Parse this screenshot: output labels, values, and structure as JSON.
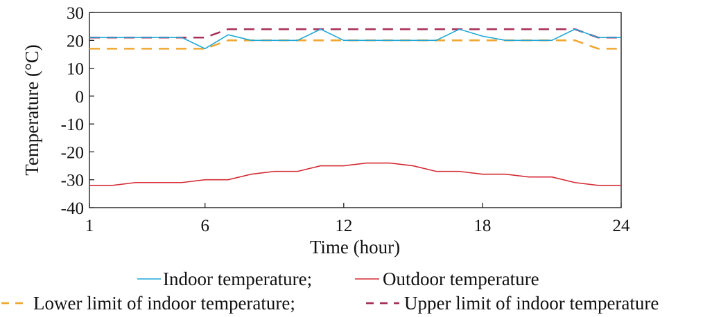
{
  "chart_data": {
    "type": "line",
    "xlabel": "Time (hour)",
    "ylabel": "Temperature (°C)",
    "xlim": [
      1,
      24
    ],
    "ylim": [
      -40,
      30
    ],
    "x_ticks": [
      1,
      6,
      12,
      18,
      24
    ],
    "y_ticks": [
      30,
      20,
      10,
      0,
      -10,
      -20,
      -30,
      -40
    ],
    "x": [
      1,
      2,
      3,
      4,
      5,
      6,
      7,
      8,
      9,
      10,
      11,
      12,
      13,
      14,
      15,
      16,
      17,
      18,
      19,
      20,
      21,
      22,
      23,
      24
    ],
    "grid": false,
    "legend_position": "bottom",
    "series": [
      {
        "name": "Indoor temperature;",
        "color": "#1ea7d7",
        "dash": "solid",
        "values": [
          21,
          21,
          21,
          21,
          21,
          17,
          22,
          20,
          20,
          20,
          24,
          20,
          20,
          20,
          20,
          20,
          24,
          21.5,
          20,
          20,
          20,
          24,
          21,
          21
        ]
      },
      {
        "name": "Outdoor temperature",
        "color": "#d42a34",
        "dash": "solid",
        "values": [
          -32,
          -32,
          -31,
          -31,
          -31,
          -30,
          -30,
          -28,
          -27,
          -27,
          -25,
          -25,
          -24,
          -24,
          -25,
          -27,
          -27,
          -28,
          -28,
          -29,
          -29,
          -31,
          -32,
          -32
        ]
      },
      {
        "name": "Lower limit of indoor temperature;",
        "color": "#f0a830",
        "dash": "dashed",
        "values": [
          17,
          17,
          17,
          17,
          17,
          17,
          20,
          20,
          20,
          20,
          20,
          20,
          20,
          20,
          20,
          20,
          20,
          20,
          20,
          20,
          20,
          20,
          17,
          17
        ]
      },
      {
        "name": "Upper limit of indoor temperature",
        "color": "#a8305a",
        "dash": "dashed",
        "values": [
          21,
          21,
          21,
          21,
          21,
          21,
          24,
          24,
          24,
          24,
          24,
          24,
          24,
          24,
          24,
          24,
          24,
          24,
          24,
          24,
          24,
          24,
          21,
          21
        ]
      }
    ]
  }
}
